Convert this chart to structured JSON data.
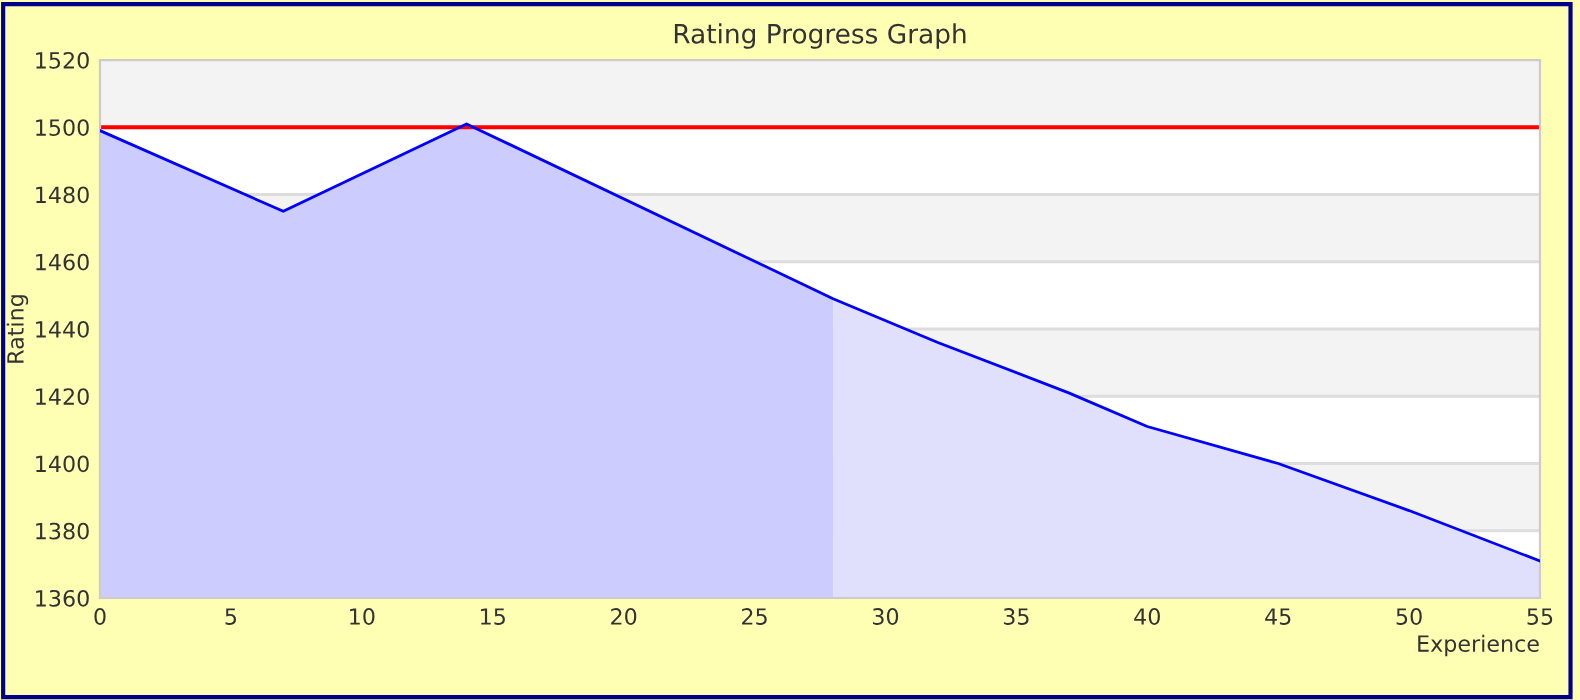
{
  "chart_data": {
    "type": "line",
    "title": "Rating Progress Graph",
    "xlabel": "Experience",
    "ylabel": "Rating",
    "series": [
      {
        "type": "area",
        "color": "#ccccff",
        "x": [
          0,
          7,
          14,
          28
        ],
        "values": [
          1499,
          1475,
          1501,
          1449
        ]
      },
      {
        "type": "area",
        "color": "#e0e0fc",
        "x": [
          28,
          32,
          37,
          40,
          45,
          50,
          55
        ],
        "values": [
          1449,
          1436,
          1421,
          1411,
          1400,
          1386,
          1371
        ]
      },
      {
        "color": "#0000ff",
        "x": [
          0,
          7,
          14,
          28,
          32,
          37,
          40,
          45,
          50,
          55
        ],
        "values": [
          1499,
          1475,
          1501,
          1449,
          1436,
          1421,
          1411,
          1400,
          1386,
          1371
        ]
      }
    ],
    "ref_lines": [
      {
        "axis": "y",
        "value": 1500,
        "color": "#ff0000"
      }
    ],
    "xlim": [
      0,
      55
    ],
    "xticks": [
      0,
      5,
      10,
      15,
      20,
      25,
      30,
      35,
      40,
      45,
      50,
      55
    ],
    "ylim": [
      1360,
      1520
    ],
    "yticks": [
      1360,
      1380,
      1400,
      1420,
      1440,
      1460,
      1480,
      1500,
      1520
    ],
    "grid": "y",
    "legend": false
  }
}
